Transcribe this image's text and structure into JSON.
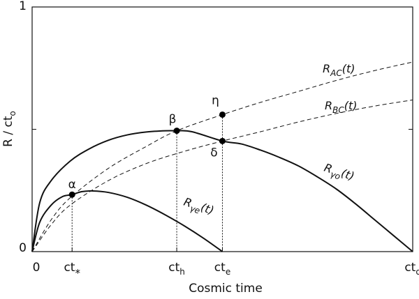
{
  "chart_data": {
    "type": "line",
    "xlabel": "Cosmic time",
    "ylabel": "R / ct",
    "ylabel_sub": "o",
    "xlim": [
      0,
      1
    ],
    "ylim": [
      0,
      1
    ],
    "grid": false,
    "x_ticks": [
      {
        "value": 0.0,
        "label": "0",
        "sub": "",
        "sup": ""
      },
      {
        "value": 0.105,
        "label": "ct",
        "sub": "",
        "sup": "*"
      },
      {
        "value": 0.38,
        "label": "ct",
        "sub": "h",
        "sup": ""
      },
      {
        "value": 0.5,
        "label": "ct",
        "sub": "e",
        "sup": ""
      },
      {
        "value": 1.0,
        "label": "ct",
        "sub": "o",
        "sup": ""
      }
    ],
    "y_ticks": [
      {
        "value": 0.0,
        "label": "0"
      },
      {
        "value": 0.5,
        "label": ""
      },
      {
        "value": 1.0,
        "label": "1"
      }
    ],
    "series": [
      {
        "key": "go",
        "label": "R",
        "label_sub": "γo",
        "label_tail": "(t)",
        "dashed": false,
        "x": [
          0,
          0.02,
          0.05,
          0.1,
          0.15,
          0.2,
          0.25,
          0.3,
          0.35,
          0.38,
          0.42,
          0.5,
          0.55,
          0.6,
          0.65,
          0.7,
          0.75,
          0.8,
          0.85,
          0.9,
          0.95,
          1.0
        ],
        "y": [
          0,
          0.2,
          0.29,
          0.37,
          0.42,
          0.455,
          0.477,
          0.489,
          0.494,
          0.494,
          0.49,
          0.452,
          0.44,
          0.415,
          0.385,
          0.35,
          0.305,
          0.255,
          0.195,
          0.13,
          0.065,
          0
        ]
      },
      {
        "key": "ge",
        "label": "R",
        "label_sub": "γe",
        "label_tail": "(t)",
        "dashed": false,
        "x": [
          0,
          0.02,
          0.05,
          0.08,
          0.105,
          0.13,
          0.16,
          0.2,
          0.25,
          0.3,
          0.35,
          0.4,
          0.45,
          0.5
        ],
        "y": [
          0,
          0.12,
          0.19,
          0.225,
          0.233,
          0.245,
          0.248,
          0.242,
          0.222,
          0.19,
          0.15,
          0.105,
          0.055,
          0
        ]
      },
      {
        "key": "ac",
        "label": "R",
        "label_sub": "AC",
        "label_tail": "(t)",
        "dashed": true,
        "x": [
          0,
          0.05,
          0.1,
          0.2,
          0.3,
          0.38,
          0.5,
          0.6,
          0.7,
          0.8,
          0.9,
          1.0
        ],
        "y": [
          0,
          0.13,
          0.22,
          0.34,
          0.43,
          0.494,
          0.56,
          0.61,
          0.655,
          0.7,
          0.74,
          0.775
        ]
      },
      {
        "key": "bc",
        "label": "R",
        "label_sub": "BC",
        "label_tail": "(t)",
        "dashed": true,
        "x": [
          0,
          0.05,
          0.1,
          0.2,
          0.3,
          0.4,
          0.5,
          0.6,
          0.7,
          0.8,
          0.9,
          1.0
        ],
        "y": [
          0,
          0.11,
          0.19,
          0.29,
          0.36,
          0.41,
          0.452,
          0.49,
          0.53,
          0.565,
          0.595,
          0.62
        ]
      }
    ],
    "points": [
      {
        "name": "α",
        "x": 0.105,
        "y": 0.233
      },
      {
        "name": "β",
        "x": 0.38,
        "y": 0.494
      },
      {
        "name": "δ",
        "x": 0.5,
        "y": 0.452
      },
      {
        "name": "η",
        "x": 0.5,
        "y": 0.56
      }
    ],
    "guides_from_points": [
      "α",
      "β",
      "δ"
    ]
  }
}
